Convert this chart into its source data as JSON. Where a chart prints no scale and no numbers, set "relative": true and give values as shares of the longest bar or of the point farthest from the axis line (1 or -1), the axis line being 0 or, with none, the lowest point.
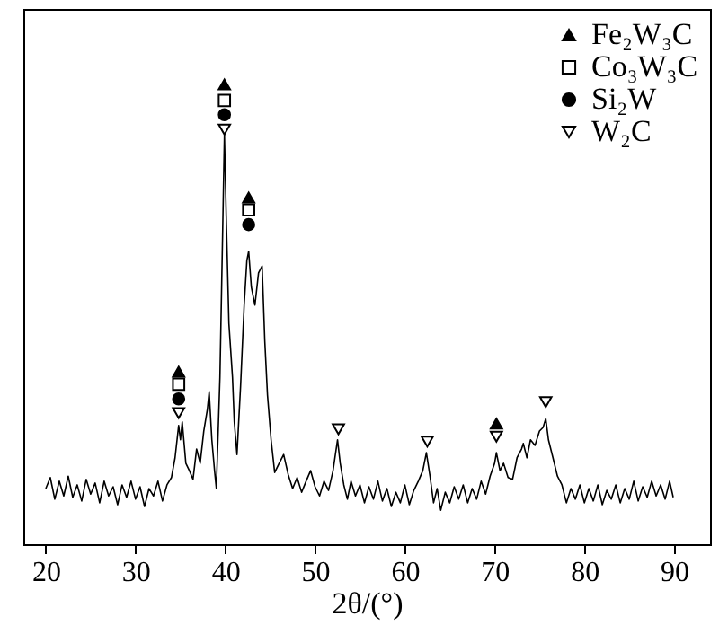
{
  "chart_data": {
    "type": "line",
    "relative": true,
    "xlabel": "2θ/(°)",
    "xlim": [
      17.5,
      94
    ],
    "xticks": [
      20,
      30,
      40,
      50,
      60,
      70,
      80,
      90
    ],
    "grid": false,
    "legend": "top right",
    "series": [
      {
        "color": "#000000",
        "x": [
          20.0,
          20.5,
          21.0,
          21.5,
          22.0,
          22.5,
          23.0,
          23.5,
          24.0,
          24.5,
          25.0,
          25.5,
          26.0,
          26.5,
          27.0,
          27.5,
          28.0,
          28.5,
          29.0,
          29.5,
          30.0,
          30.5,
          31.0,
          31.5,
          32.0,
          32.5,
          33.0,
          33.5,
          34.0,
          34.4,
          34.8,
          35.0,
          35.2,
          35.6,
          36.0,
          36.4,
          36.8,
          37.2,
          37.6,
          38.0,
          38.2,
          38.5,
          38.8,
          39.0,
          39.4,
          39.7,
          39.9,
          40.1,
          40.4,
          40.8,
          41.0,
          41.3,
          41.7,
          42.1,
          42.4,
          42.6,
          42.9,
          43.3,
          43.7,
          44.1,
          44.4,
          44.7,
          45.1,
          45.5,
          46.0,
          46.5,
          47.0,
          47.5,
          48.0,
          48.5,
          49.0,
          49.5,
          50.0,
          50.5,
          51.0,
          51.5,
          52.0,
          52.5,
          52.8,
          53.2,
          53.6,
          54.0,
          54.5,
          55.0,
          55.5,
          56.0,
          56.5,
          57.0,
          57.5,
          58.0,
          58.5,
          59.0,
          59.5,
          60.0,
          60.5,
          61.0,
          61.5,
          62.0,
          62.4,
          62.8,
          63.2,
          63.6,
          64.0,
          64.5,
          65.0,
          65.5,
          66.0,
          66.5,
          67.0,
          67.5,
          68.0,
          68.5,
          69.0,
          69.5,
          70.0,
          70.2,
          70.6,
          71.0,
          71.5,
          72.0,
          72.5,
          73.0,
          73.2,
          73.6,
          74.0,
          74.5,
          75.0,
          75.4,
          75.7,
          76.0,
          76.5,
          77.0,
          77.5,
          78.0,
          78.5,
          79.0,
          79.5,
          80.0,
          80.5,
          81.0,
          81.5,
          82.0,
          82.5,
          83.0,
          83.5,
          84.0,
          84.5,
          85.0,
          85.5,
          86.0,
          86.5,
          87.0,
          87.5,
          88.0,
          88.5,
          89.0,
          89.5,
          89.9
        ],
        "values": [
          0.121,
          0.145,
          0.098,
          0.137,
          0.105,
          0.148,
          0.102,
          0.129,
          0.094,
          0.141,
          0.109,
          0.133,
          0.09,
          0.137,
          0.105,
          0.125,
          0.086,
          0.129,
          0.102,
          0.137,
          0.098,
          0.125,
          0.082,
          0.121,
          0.105,
          0.137,
          0.094,
          0.129,
          0.145,
          0.188,
          0.258,
          0.227,
          0.266,
          0.176,
          0.16,
          0.141,
          0.207,
          0.176,
          0.246,
          0.293,
          0.332,
          0.227,
          0.16,
          0.121,
          0.363,
          0.676,
          0.891,
          0.715,
          0.48,
          0.363,
          0.266,
          0.195,
          0.344,
          0.52,
          0.617,
          0.637,
          0.559,
          0.52,
          0.59,
          0.605,
          0.441,
          0.324,
          0.227,
          0.156,
          0.176,
          0.195,
          0.152,
          0.121,
          0.145,
          0.113,
          0.137,
          0.16,
          0.125,
          0.105,
          0.137,
          0.117,
          0.16,
          0.227,
          0.176,
          0.129,
          0.098,
          0.137,
          0.105,
          0.129,
          0.09,
          0.125,
          0.098,
          0.137,
          0.094,
          0.121,
          0.082,
          0.113,
          0.09,
          0.129,
          0.086,
          0.117,
          0.137,
          0.16,
          0.199,
          0.148,
          0.09,
          0.121,
          0.074,
          0.113,
          0.09,
          0.125,
          0.098,
          0.129,
          0.09,
          0.121,
          0.098,
          0.137,
          0.109,
          0.148,
          0.176,
          0.199,
          0.16,
          0.176,
          0.145,
          0.141,
          0.188,
          0.207,
          0.219,
          0.188,
          0.227,
          0.215,
          0.246,
          0.254,
          0.273,
          0.227,
          0.188,
          0.148,
          0.129,
          0.09,
          0.121,
          0.098,
          0.129,
          0.09,
          0.121,
          0.094,
          0.129,
          0.086,
          0.117,
          0.098,
          0.129,
          0.09,
          0.121,
          0.098,
          0.137,
          0.094,
          0.125,
          0.102,
          0.137,
          0.105,
          0.129,
          0.098,
          0.137,
          0.102
        ]
      },
      {
        "type": "scatter",
        "name": "Fe₂W₃C",
        "color": "#000000",
        "marker": "triangle",
        "x": [
          34.8,
          39.9,
          42.6,
          70.2
        ],
        "values": [
          0.375,
          1.0,
          0.754,
          0.262
        ]
      },
      {
        "type": "scatter",
        "name": "Co₃W₃C",
        "color": "#000000",
        "marker": "square",
        "x": [
          34.8,
          39.9,
          42.6
        ],
        "values": [
          0.348,
          0.965,
          0.727
        ]
      },
      {
        "type": "scatter",
        "name": "Si₂W",
        "color": "#000000",
        "marker": "circle",
        "x": [
          34.8,
          39.9,
          42.6
        ],
        "values": [
          0.316,
          0.934,
          0.695
        ]
      },
      {
        "type": "scatter",
        "name": "W₂C",
        "color": "#000000",
        "marker": "triangle-down",
        "x": [
          34.8,
          39.9,
          52.6,
          62.5,
          70.2,
          75.7
        ],
        "values": [
          0.285,
          0.902,
          0.25,
          0.223,
          0.234,
          0.309
        ]
      }
    ]
  }
}
